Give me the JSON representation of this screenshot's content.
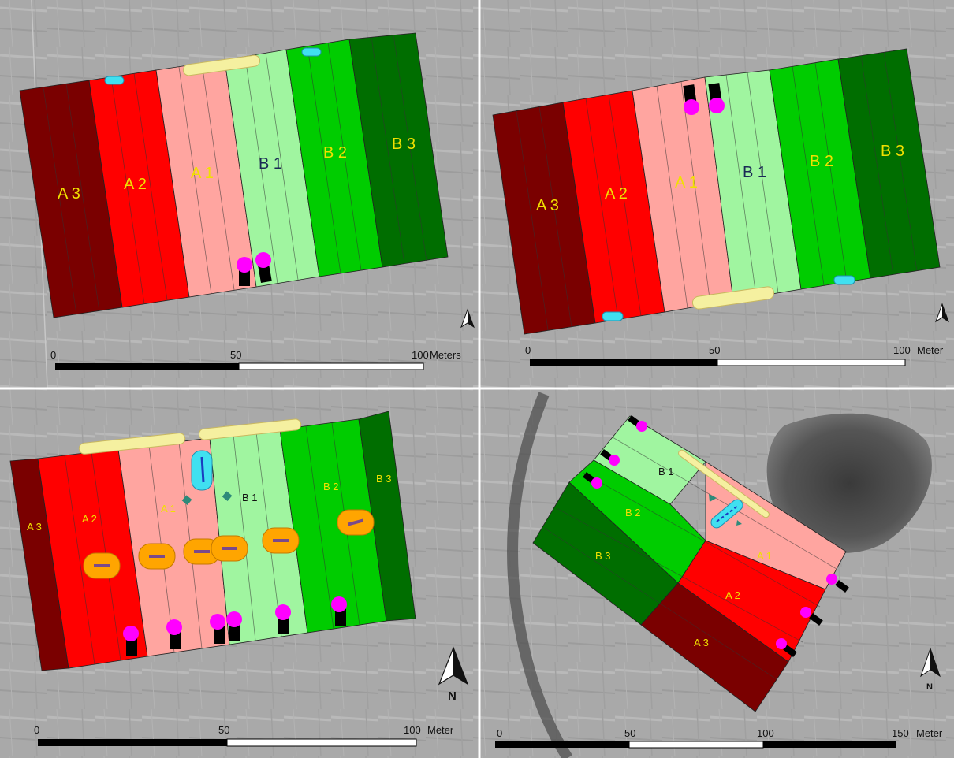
{
  "colors": {
    "A3": "#7a0000",
    "A2": "#ff0000",
    "A1": "#ffa5a0",
    "B1": "#a0f5a0",
    "B2": "#00cc00",
    "B3": "#006e00",
    "label_yellow": "#f0e000",
    "label_dark": "#1a2a55",
    "magenta": "#ff00ff",
    "cyan": "#40e0f0",
    "pale_yellow": "#f5f0a0",
    "orange": "#ffa500"
  },
  "panels": [
    {
      "id": "panel-1",
      "labels": [
        "A 3",
        "A 2",
        "A 1",
        "B 1",
        "B 2",
        "B 3"
      ],
      "scalebar": {
        "ticks": [
          "0",
          "50",
          "100"
        ],
        "unit": "Meters"
      },
      "north": ""
    },
    {
      "id": "panel-2",
      "labels": [
        "A 3",
        "A 2",
        "A 1",
        "B 1",
        "B 2",
        "B 3"
      ],
      "scalebar": {
        "ticks": [
          "0",
          "50",
          "100"
        ],
        "unit": "Meter"
      },
      "north": ""
    },
    {
      "id": "panel-3",
      "labels": [
        "A 3",
        "A 2",
        "A 1",
        "B 1",
        "B 2",
        "B 3"
      ],
      "scalebar": {
        "ticks": [
          "0",
          "50",
          "100"
        ],
        "unit": "Meter"
      },
      "north": "N"
    },
    {
      "id": "panel-4",
      "labels": [
        "A 3",
        "A 2",
        "A 1",
        "B 1",
        "B 2",
        "B 3"
      ],
      "scalebar": {
        "ticks": [
          "0",
          "50",
          "100",
          "150"
        ],
        "unit": "Meter"
      },
      "north": "N"
    }
  ]
}
